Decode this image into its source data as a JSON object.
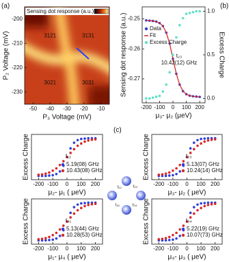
{
  "chart_data": [
    {
      "type": "heatmap",
      "panel_label": "(a)",
      "colorbar_label": "Sensing dot response (a.u.)",
      "xlabel": "P₃ Voltage (mV)",
      "ylabel": "P₂ Voltage (mV)",
      "xlim": [
        -55,
        -5
      ],
      "xticks": [
        -50,
        -40,
        -30,
        -20,
        -10
      ],
      "ylim": [
        -235,
        -195
      ],
      "yticks": [
        -200,
        -210,
        -220,
        -230
      ],
      "annotations": [
        "3121",
        "3131",
        "3021",
        "3031"
      ]
    },
    {
      "type": "line",
      "panel_label": "(b)",
      "annotation": [
        "t₂₃",
        "10.42(12) GHz"
      ],
      "xlabel": "μ₃- μ₂ (μeV)",
      "ylabel": "Sensing dot response (a.u.)",
      "y2label": "Excess Charge",
      "x": [
        -200,
        -175,
        -150,
        -125,
        -100,
        -75,
        -50,
        -25,
        0,
        25,
        50,
        75,
        100,
        125,
        150,
        175,
        200
      ],
      "xlim": [
        -230,
        240
      ],
      "xticks": [
        -200,
        -100,
        0,
        100,
        200
      ],
      "ylim": [
        -0.278,
        -0.246
      ],
      "yticks": [
        -0.25,
        -0.26,
        -0.27
      ],
      "y2lim": [
        -0.05,
        1.05
      ],
      "y2ticks": [
        {
          "value": 0,
          "label": "0.0"
        },
        0.5,
        {
          "value": 1,
          "label": "1.0"
        }
      ],
      "series": [
        {
          "name": "Data",
          "color": "#2f3fd6",
          "style": "markers",
          "values": [
            -0.2505,
            -0.2506,
            -0.2507,
            -0.2509,
            -0.2514,
            -0.2524,
            -0.2546,
            -0.2582,
            -0.2633,
            -0.2683,
            -0.2719,
            -0.2741,
            -0.2751,
            -0.2756,
            -0.2758,
            -0.2759,
            -0.276
          ]
        },
        {
          "name": "Fit",
          "color": "#d42a2a",
          "style": "line",
          "values": [
            -0.2505,
            -0.2506,
            -0.2507,
            -0.2509,
            -0.2514,
            -0.2524,
            -0.2546,
            -0.2582,
            -0.2633,
            -0.2683,
            -0.2719,
            -0.2741,
            -0.2751,
            -0.2756,
            -0.2758,
            -0.2759,
            -0.276
          ]
        },
        {
          "name": "Excess Charge",
          "color": "#5ee0c8",
          "style": "markers",
          "axis": "y2",
          "values": [
            0,
            0,
            0.01,
            0.02,
            0.03,
            0.08,
            0.16,
            0.3,
            0.5,
            0.7,
            0.84,
            0.92,
            0.97,
            0.98,
            0.99,
            1,
            1
          ]
        }
      ]
    },
    {
      "type": "line",
      "annotation": [
        "t₁₂"
      ],
      "xlabel": "μ₂- μ₁ ( μeV)",
      "ylabel": "Excess Charge",
      "x": [
        -200,
        -175,
        -150,
        -125,
        -100,
        -75,
        -50,
        -25,
        0,
        25,
        50,
        75,
        100,
        125,
        150,
        175,
        200
      ],
      "xlim": [
        -250,
        250
      ],
      "xticks": [
        -200,
        -100,
        0,
        100,
        200
      ],
      "ylim": [
        -0.1,
        1.1
      ],
      "series": [
        {
          "name": "5.19(08) GHz",
          "color": "#2f3fd6",
          "style": "markers",
          "values": [
            0,
            0,
            0,
            0.01,
            0.02,
            0.05,
            0.12,
            0.27,
            0.5,
            0.73,
            0.88,
            0.95,
            0.98,
            0.99,
            1,
            1,
            1
          ]
        },
        {
          "name": "10.43(08) GHz",
          "color": "#d42a2a",
          "style": "markers",
          "values": [
            0.03,
            0.04,
            0.06,
            0.09,
            0.14,
            0.2,
            0.29,
            0.39,
            0.5,
            0.61,
            0.71,
            0.8,
            0.86,
            0.91,
            0.94,
            0.96,
            0.97
          ]
        }
      ]
    },
    {
      "type": "line",
      "annotation": [
        "t₂₃"
      ],
      "xlabel": "μ₃- μ₂ ( μeV)",
      "ylabel": "Excess Charge",
      "x": [
        -200,
        -175,
        -150,
        -125,
        -100,
        -75,
        -50,
        -25,
        0,
        25,
        50,
        75,
        100,
        125,
        150,
        175,
        200
      ],
      "xlim": [
        -250,
        250
      ],
      "xticks": [
        -200,
        -100,
        0,
        100,
        200
      ],
      "ylim": [
        -0.1,
        1.1
      ],
      "series": [
        {
          "name": "5.13(07) GHz",
          "color": "#2f3fd6",
          "style": "markers",
          "values": [
            0,
            0,
            0,
            0.01,
            0.02,
            0.05,
            0.12,
            0.27,
            0.5,
            0.73,
            0.88,
            0.95,
            0.98,
            0.99,
            1,
            1,
            1
          ]
        },
        {
          "name": "10.24(14) GHz",
          "color": "#d42a2a",
          "style": "markers",
          "values": [
            0.03,
            0.04,
            0.06,
            0.09,
            0.14,
            0.2,
            0.29,
            0.39,
            0.5,
            0.61,
            0.71,
            0.8,
            0.86,
            0.91,
            0.94,
            0.96,
            0.97
          ]
        }
      ]
    },
    {
      "type": "line",
      "annotation": [
        "t₄₁"
      ],
      "xlabel": "μ₁- μ₄ ( μeV)",
      "ylabel": "Excess Charge",
      "x": [
        -200,
        -175,
        -150,
        -125,
        -100,
        -75,
        -50,
        -25,
        0,
        25,
        50,
        75,
        100,
        125,
        150,
        175,
        200
      ],
      "xlim": [
        -250,
        250
      ],
      "xticks": [
        -200,
        -100,
        0,
        100,
        200
      ],
      "ylim": [
        -0.1,
        1.1
      ],
      "series": [
        {
          "name": "5.13(44) GHz",
          "color": "#2f3fd6",
          "style": "markers",
          "values": [
            0,
            0,
            0,
            0.01,
            0.02,
            0.05,
            0.12,
            0.27,
            0.5,
            0.73,
            0.88,
            0.95,
            0.98,
            0.99,
            1,
            1,
            1
          ]
        },
        {
          "name": "10.28(53) GHz",
          "color": "#d42a2a",
          "style": "markers",
          "values": [
            0.03,
            0.04,
            0.06,
            0.09,
            0.14,
            0.2,
            0.29,
            0.39,
            0.5,
            0.61,
            0.71,
            0.8,
            0.86,
            0.91,
            0.94,
            0.96,
            0.97
          ]
        }
      ]
    },
    {
      "type": "line",
      "annotation": [
        "t₃₄"
      ],
      "xlabel": "μ₄- μ₃ ( μeV)",
      "ylabel": "Excess Charge",
      "x": [
        -200,
        -175,
        -150,
        -125,
        -100,
        -75,
        -50,
        -25,
        0,
        25,
        50,
        75,
        100,
        125,
        150,
        175,
        200
      ],
      "xlim": [
        -250,
        250
      ],
      "xticks": [
        -200,
        -100,
        0,
        100,
        200
      ],
      "ylim": [
        -0.1,
        1.1
      ],
      "series": [
        {
          "name": "5.22(19) GHz",
          "color": "#2f3fd6",
          "style": "markers",
          "values": [
            0,
            0,
            0,
            0.01,
            0.02,
            0.05,
            0.12,
            0.27,
            0.5,
            0.73,
            0.88,
            0.95,
            0.98,
            0.99,
            1,
            1,
            1
          ]
        },
        {
          "name": "10.07(73) GHz",
          "color": "#d42a2a",
          "style": "markers",
          "values": [
            0.03,
            0.04,
            0.06,
            0.09,
            0.14,
            0.2,
            0.29,
            0.39,
            0.5,
            0.61,
            0.71,
            0.8,
            0.86,
            0.91,
            0.94,
            0.96,
            0.97
          ]
        }
      ]
    }
  ],
  "diagram": {
    "panel_label": "(c)",
    "couplings": [
      "t₁₂",
      "t₂₃",
      "t₃₄",
      "t₄₁"
    ]
  }
}
